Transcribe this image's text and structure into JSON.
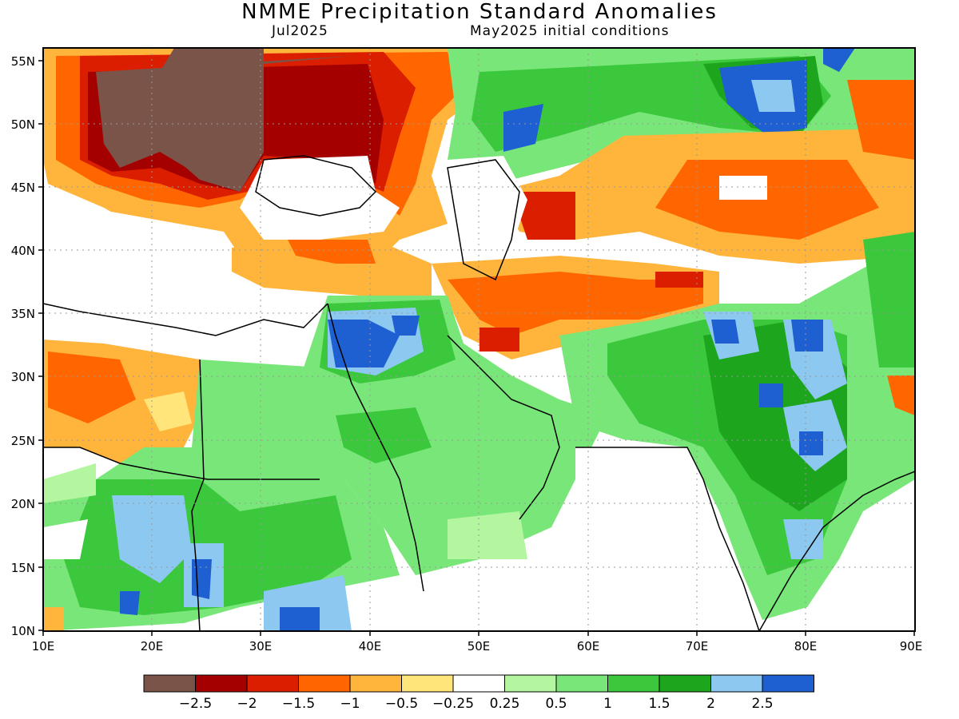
{
  "title": "NMME Precipitation Standard Anomalies",
  "subtitle_left": "Jul2025",
  "subtitle_right": "May2025 initial conditions",
  "lat_labels": [
    "55N",
    "50N",
    "45N",
    "40N",
    "35N",
    "30N",
    "25N",
    "20N",
    "15N",
    "10N"
  ],
  "lon_labels": [
    "10E",
    "20E",
    "30E",
    "40E",
    "50E",
    "60E",
    "70E",
    "80E",
    "90E"
  ],
  "map_extent": {
    "lon": [
      10,
      90
    ],
    "lat": [
      10,
      56
    ]
  },
  "colorbar": {
    "colors": [
      "#7b5449",
      "#a50000",
      "#dc1e00",
      "#ff6600",
      "#ffb43c",
      "#ffe57a",
      "#ffffff",
      "#b4f5a0",
      "#78e678",
      "#3cc83c",
      "#1ea51e",
      "#8cc8f0",
      "#1e5fd2"
    ],
    "labels": [
      "−2.5",
      "−2",
      "−1.5",
      "−1",
      "−0.5",
      "−0.25",
      "0.25",
      "0.5",
      "1",
      "1.5",
      "2",
      "2.5"
    ]
  },
  "colors": {
    "land_outline": "#000000",
    "grid": "#999999"
  }
}
